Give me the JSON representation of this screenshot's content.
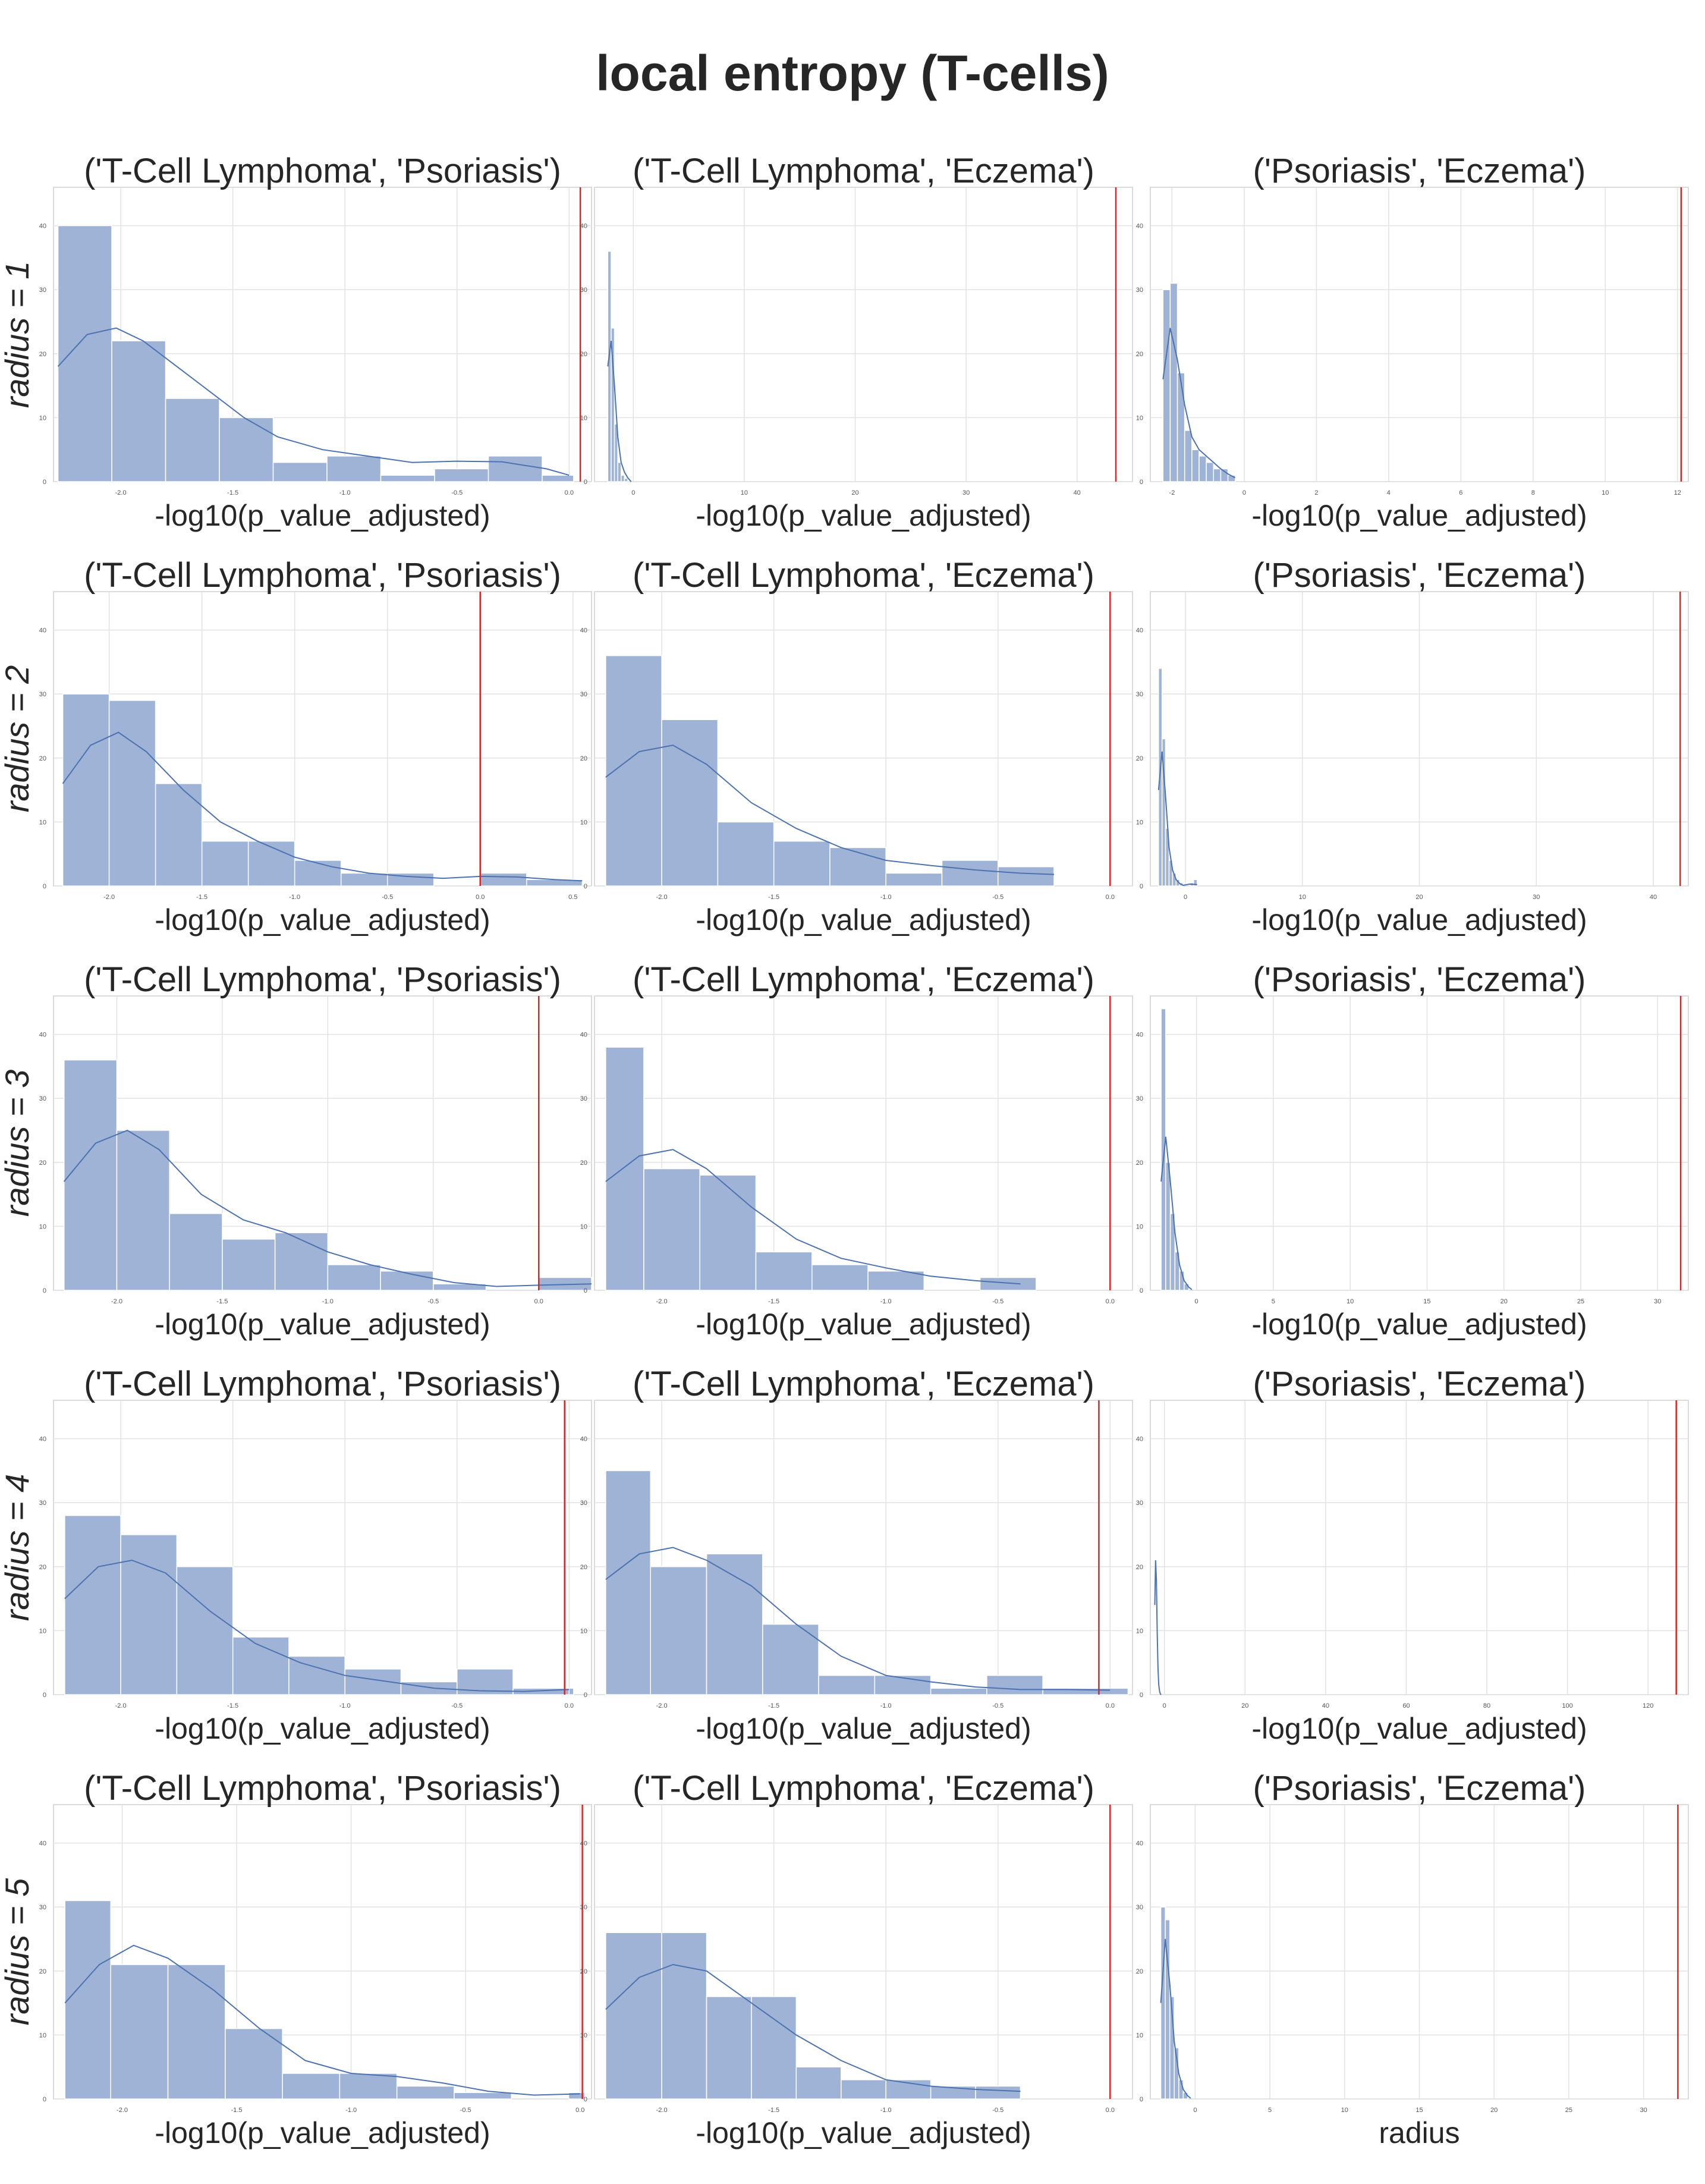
{
  "figure": {
    "title": "local entropy (T-cells)",
    "row_labels": [
      "$radius = 1$",
      "$radius = 2$",
      "$radius = 3$",
      "$radius = 4$",
      "$radius = 5$"
    ],
    "row_label_text": [
      "radius = 1",
      "radius = 2",
      "radius = 3",
      "radius = 4",
      "radius = 5"
    ],
    "bar_color": "#9fb3d6",
    "kde_color": "#4c72b0",
    "ref_line_color": "#d62728",
    "grid": true
  },
  "chart_data": [
    {
      "row": 0,
      "col": 0,
      "type": "bar",
      "title": "('T-Cell Lymphoma', 'Psoriasis')",
      "xlabel": "-log10(p_value_adjusted)",
      "xlim": [
        -2.3,
        0.1
      ],
      "ylim": [
        0,
        46
      ],
      "yticks": [
        0,
        10,
        20,
        30,
        40
      ],
      "xticks": [
        -2.0,
        -1.5,
        -1.0,
        -0.5,
        0.0
      ],
      "xtick_labels": [
        "-2.0",
        "-1.5",
        "-1.0",
        "-0.5",
        "0.0"
      ],
      "bins": [
        -2.28,
        -2.04,
        -1.8,
        -1.56,
        -1.32,
        -1.08,
        -0.84,
        -0.6,
        -0.36,
        -0.12,
        0.02
      ],
      "counts": [
        40,
        22,
        13,
        10,
        3,
        4,
        1,
        2,
        4,
        1
      ],
      "ref_line": 0.05,
      "kde_x": [
        -2.28,
        -2.15,
        -2.02,
        -1.9,
        -1.75,
        -1.6,
        -1.45,
        -1.3,
        -1.1,
        -0.9,
        -0.7,
        -0.5,
        -0.3,
        -0.1,
        0.0
      ],
      "kde_y": [
        18,
        23,
        24,
        22,
        18,
        14,
        10,
        7,
        5,
        4,
        3,
        3.2,
        3.1,
        2,
        1
      ]
    },
    {
      "row": 0,
      "col": 1,
      "type": "bar",
      "title": "('T-Cell Lymphoma', 'Eczema')",
      "xlabel": "-log10(p_value_adjusted)",
      "xlim": [
        -3.5,
        45
      ],
      "ylim": [
        0,
        46
      ],
      "yticks": [
        0,
        10,
        20,
        30,
        40
      ],
      "xticks": [
        0,
        10,
        20,
        30,
        40
      ],
      "xtick_labels": [
        "0",
        "10",
        "20",
        "30",
        "40"
      ],
      "bins": [
        -2.3,
        -2.0,
        -1.7,
        -1.4,
        -1.1,
        -0.8,
        -0.5
      ],
      "counts": [
        36,
        24,
        9,
        3,
        1,
        0.5
      ],
      "ref_line": 43.5,
      "kde_x": [
        -2.3,
        -2.0,
        -1.7,
        -1.4,
        -1.1,
        -0.8,
        -0.5,
        -0.2
      ],
      "kde_y": [
        18,
        22,
        15,
        7,
        3,
        1.5,
        0.6,
        0
      ]
    },
    {
      "row": 0,
      "col": 2,
      "type": "bar",
      "title": "('Psoriasis', 'Eczema')",
      "xlabel": "-log10(p_value_adjusted)",
      "xlim": [
        -2.6,
        12.3
      ],
      "ylim": [
        0,
        46
      ],
      "yticks": [
        0,
        10,
        20,
        30,
        40
      ],
      "xticks": [
        -2,
        0,
        2,
        4,
        6,
        8,
        10,
        12
      ],
      "xtick_labels": [
        "-2",
        "0",
        "2",
        "4",
        "6",
        "8",
        "10",
        "12"
      ],
      "bins": [
        -2.25,
        -2.05,
        -1.85,
        -1.65,
        -1.45,
        -1.25,
        -1.05,
        -0.85,
        -0.65,
        -0.45,
        -0.25
      ],
      "counts": [
        30,
        31,
        17,
        8,
        5,
        4,
        3,
        2,
        2,
        1
      ],
      "ref_line": 12.1,
      "kde_x": [
        -2.25,
        -2.05,
        -1.85,
        -1.65,
        -1.45,
        -1.25,
        -1.05,
        -0.85,
        -0.65,
        -0.45,
        -0.25
      ],
      "kde_y": [
        16,
        24,
        19,
        12,
        7,
        5,
        4,
        3,
        2,
        1.2,
        0.6
      ]
    },
    {
      "row": 1,
      "col": 0,
      "type": "bar",
      "title": "('T-Cell Lymphoma', 'Psoriasis')",
      "xlabel": "-log10(p_value_adjusted)",
      "xlim": [
        -2.3,
        0.6
      ],
      "ylim": [
        0,
        46
      ],
      "yticks": [
        0,
        10,
        20,
        30,
        40
      ],
      "xticks": [
        -2.0,
        -1.5,
        -1.0,
        -0.5,
        0.0,
        0.5
      ],
      "xtick_labels": [
        "-2.0",
        "-1.5",
        "-1.0",
        "-0.5",
        "0.0",
        "0.5"
      ],
      "bins": [
        -2.25,
        -2.0,
        -1.75,
        -1.5,
        -1.25,
        -1.0,
        -0.75,
        -0.5,
        -0.25,
        0.0,
        0.25,
        0.55
      ],
      "counts": [
        30,
        29,
        16,
        7,
        7,
        4,
        2,
        2,
        0,
        2,
        1
      ],
      "ref_line": 0.0,
      "kde_x": [
        -2.25,
        -2.1,
        -1.95,
        -1.8,
        -1.6,
        -1.4,
        -1.2,
        -1.0,
        -0.8,
        -0.6,
        -0.4,
        -0.2,
        0.0,
        0.2,
        0.4,
        0.55
      ],
      "kde_y": [
        16,
        22,
        24,
        21,
        15,
        10,
        7,
        4.5,
        3,
        2,
        1.5,
        1.2,
        1.5,
        1.4,
        1.0,
        0.8
      ]
    },
    {
      "row": 1,
      "col": 1,
      "type": "bar",
      "title": "('T-Cell Lymphoma', 'Eczema')",
      "xlabel": "-log10(p_value_adjusted)",
      "xlim": [
        -2.3,
        0.1
      ],
      "ylim": [
        0,
        46
      ],
      "yticks": [
        0,
        10,
        20,
        30,
        40
      ],
      "xticks": [
        -2.0,
        -1.5,
        -1.0,
        -0.5,
        0.0
      ],
      "xtick_labels": [
        "-2.0",
        "-1.5",
        "-1.0",
        "-0.5",
        "0.0"
      ],
      "bins": [
        -2.25,
        -2.0,
        -1.75,
        -1.5,
        -1.25,
        -1.0,
        -0.75,
        -0.5,
        -0.25
      ],
      "counts": [
        36,
        26,
        10,
        7,
        6,
        2,
        4,
        3,
        2
      ],
      "ref_line": 0.0,
      "kde_x": [
        -2.25,
        -2.1,
        -1.95,
        -1.8,
        -1.6,
        -1.4,
        -1.2,
        -1.0,
        -0.8,
        -0.6,
        -0.4,
        -0.25
      ],
      "kde_y": [
        17,
        21,
        22,
        19,
        13,
        9,
        6,
        4,
        3.2,
        2.5,
        2,
        1.8
      ]
    },
    {
      "row": 1,
      "col": 2,
      "type": "bar",
      "title": "('Psoriasis', 'Eczema')",
      "xlabel": "-log10(p_value_adjusted)",
      "xlim": [
        -3.0,
        43
      ],
      "ylim": [
        0,
        46
      ],
      "yticks": [
        0,
        10,
        20,
        30,
        40
      ],
      "xticks": [
        0,
        10,
        20,
        30,
        40
      ],
      "xtick_labels": [
        "0",
        "10",
        "20",
        "30",
        "40"
      ],
      "bins": [
        -2.3,
        -2.0,
        -1.7,
        -1.4,
        -1.1,
        -0.8,
        -0.5,
        -0.2,
        0.1,
        0.4,
        0.7,
        1.0
      ],
      "counts": [
        34,
        23,
        9,
        4,
        2,
        1,
        0.5,
        0,
        0,
        0.5,
        1
      ],
      "ref_line": 42.3,
      "kde_x": [
        -2.3,
        -2.0,
        -1.7,
        -1.4,
        -1.1,
        -0.8,
        -0.5,
        -0.2,
        0.4,
        1.0
      ],
      "kde_y": [
        15,
        21,
        14,
        6,
        2.5,
        1,
        0.4,
        0.1,
        0.3,
        0.2
      ]
    },
    {
      "row": 2,
      "col": 0,
      "type": "bar",
      "title": "('T-Cell Lymphoma', 'Psoriasis')",
      "xlabel": "-log10(p_value_adjusted)",
      "xlim": [
        -2.3,
        0.25
      ],
      "ylim": [
        0,
        46
      ],
      "yticks": [
        0,
        10,
        20,
        30,
        40
      ],
      "xticks": [
        -2.0,
        -1.5,
        -1.0,
        -0.5,
        0.0
      ],
      "xtick_labels": [
        "-2.0",
        "-1.5",
        "-1.0",
        "-0.5",
        "0.0"
      ],
      "bins": [
        -2.25,
        -2.0,
        -1.75,
        -1.5,
        -1.25,
        -1.0,
        -0.75,
        -0.5,
        -0.25,
        0.0,
        0.25
      ],
      "counts": [
        36,
        25,
        12,
        8,
        9,
        4,
        3,
        1,
        0,
        2
      ],
      "ref_line": 0.0,
      "kde_x": [
        -2.25,
        -2.1,
        -1.95,
        -1.8,
        -1.6,
        -1.4,
        -1.2,
        -1.0,
        -0.8,
        -0.6,
        -0.4,
        -0.2,
        0.0,
        0.25
      ],
      "kde_y": [
        17,
        23,
        25,
        22,
        15,
        11,
        9,
        6,
        4,
        2.5,
        1.2,
        0.6,
        0.8,
        1.0
      ]
    },
    {
      "row": 2,
      "col": 1,
      "type": "bar",
      "title": "('T-Cell Lymphoma', 'Eczema')",
      "xlabel": "-log10(p_value_adjusted)",
      "xlim": [
        -2.3,
        0.1
      ],
      "ylim": [
        0,
        46
      ],
      "yticks": [
        0,
        10,
        20,
        30,
        40
      ],
      "xticks": [
        -2.0,
        -1.5,
        -1.0,
        -0.5,
        0.0
      ],
      "xtick_labels": [
        "-2.0",
        "-1.5",
        "-1.0",
        "-0.5",
        "0.0"
      ],
      "bins": [
        -2.25,
        -2.08,
        -1.83,
        -1.58,
        -1.33,
        -1.08,
        -0.83,
        -0.58,
        -0.33
      ],
      "counts": [
        38,
        19,
        18,
        6,
        4,
        3,
        0,
        2
      ],
      "ref_line": 0.0,
      "kde_x": [
        -2.25,
        -2.1,
        -1.95,
        -1.8,
        -1.6,
        -1.4,
        -1.2,
        -1.0,
        -0.8,
        -0.6,
        -0.4
      ],
      "kde_y": [
        17,
        21,
        22,
        19,
        13,
        8,
        5,
        3.5,
        2.2,
        1.5,
        1.0
      ]
    },
    {
      "row": 2,
      "col": 2,
      "type": "bar",
      "title": "('Psoriasis', 'Eczema')",
      "xlabel": "-log10(p_value_adjusted)",
      "xlim": [
        -3.0,
        32
      ],
      "ylim": [
        0,
        46
      ],
      "yticks": [
        0,
        10,
        20,
        30,
        40
      ],
      "xticks": [
        0,
        5,
        10,
        15,
        20,
        25,
        30
      ],
      "xtick_labels": [
        "0",
        "5",
        "10",
        "15",
        "20",
        "25",
        "30"
      ],
      "bins": [
        -2.3,
        -2.0,
        -1.7,
        -1.4,
        -1.1,
        -0.8,
        -0.5
      ],
      "counts": [
        44,
        20,
        12,
        6,
        3,
        1
      ],
      "ref_line": 31.5,
      "kde_x": [
        -2.3,
        -2.0,
        -1.7,
        -1.4,
        -1.1,
        -0.8,
        -0.5,
        -0.3
      ],
      "kde_y": [
        17,
        24,
        17,
        9,
        4,
        1.5,
        0.5,
        0.1
      ]
    },
    {
      "row": 3,
      "col": 0,
      "type": "bar",
      "title": "('T-Cell Lymphoma', 'Psoriasis')",
      "xlabel": "-log10(p_value_adjusted)",
      "xlim": [
        -2.3,
        0.1
      ],
      "ylim": [
        0,
        46
      ],
      "yticks": [
        0,
        10,
        20,
        30,
        40
      ],
      "xticks": [
        -2.0,
        -1.5,
        -1.0,
        -0.5,
        0.0
      ],
      "xtick_labels": [
        "-2.0",
        "-1.5",
        "-1.0",
        "-0.5",
        "0.0"
      ],
      "bins": [
        -2.25,
        -2.0,
        -1.75,
        -1.5,
        -1.25,
        -1.0,
        -0.75,
        -0.5,
        -0.25,
        0.0,
        0.02
      ],
      "counts": [
        28,
        25,
        20,
        9,
        6,
        4,
        2,
        4,
        1,
        1
      ],
      "ref_line": -0.02,
      "kde_x": [
        -2.25,
        -2.1,
        -1.95,
        -1.8,
        -1.6,
        -1.4,
        -1.2,
        -1.0,
        -0.8,
        -0.6,
        -0.4,
        -0.2,
        0.0
      ],
      "kde_y": [
        15,
        20,
        21,
        19,
        13,
        8,
        5,
        3,
        2,
        1,
        0.6,
        0.5,
        0.8
      ]
    },
    {
      "row": 3,
      "col": 1,
      "type": "bar",
      "title": "('T-Cell Lymphoma', 'Eczema')",
      "xlabel": "-log10(p_value_adjusted)",
      "xlim": [
        -2.3,
        0.1
      ],
      "ylim": [
        0,
        46
      ],
      "yticks": [
        0,
        10,
        20,
        30,
        40
      ],
      "xticks": [
        -2.0,
        -1.5,
        -1.0,
        -0.5,
        0.0
      ],
      "xtick_labels": [
        "-2.0",
        "-1.5",
        "-1.0",
        "-0.5",
        "0.0"
      ],
      "bins": [
        -2.25,
        -2.05,
        -1.8,
        -1.55,
        -1.3,
        -1.05,
        -0.8,
        -0.55,
        -0.3,
        -0.05,
        0.08
      ],
      "counts": [
        35,
        20,
        22,
        11,
        3,
        3,
        1,
        3,
        1,
        1
      ],
      "ref_line": -0.05,
      "kde_x": [
        -2.25,
        -2.1,
        -1.95,
        -1.8,
        -1.6,
        -1.4,
        -1.2,
        -1.0,
        -0.8,
        -0.6,
        -0.4,
        -0.2,
        0.0
      ],
      "kde_y": [
        18,
        22,
        23,
        21,
        17,
        11,
        6,
        3,
        2,
        1.2,
        0.8,
        0.8,
        0.7
      ]
    },
    {
      "row": 3,
      "col": 2,
      "type": "bar",
      "title": "('Psoriasis', 'Eczema')",
      "xlabel": "-log10(p_value_adjusted)",
      "xlim": [
        -3.5,
        130
      ],
      "ylim": [
        0,
        46
      ],
      "yticks": [
        0,
        10,
        20,
        30,
        40
      ],
      "xticks": [
        0,
        20,
        40,
        60,
        80,
        100,
        120
      ],
      "xtick_labels": [
        "0",
        "20",
        "40",
        "60",
        "80",
        "100",
        "120"
      ],
      "bins": [],
      "counts": [],
      "ref_line": 127,
      "kde_x": [
        -2.4,
        -2.2,
        -2.0,
        -1.8,
        -1.6,
        -1.4,
        -1.2,
        -1.0,
        -0.8
      ],
      "kde_y": [
        14,
        21,
        18,
        10,
        4,
        1.5,
        0.5,
        0.1,
        0
      ]
    },
    {
      "row": 4,
      "col": 0,
      "type": "bar",
      "title": "('T-Cell Lymphoma', 'Psoriasis')",
      "xlabel": "-log10(p_value_adjusted)",
      "xlim": [
        -2.3,
        0.05
      ],
      "ylim": [
        0,
        46
      ],
      "yticks": [
        0,
        10,
        20,
        30,
        40
      ],
      "xticks": [
        -2.0,
        -1.5,
        -1.0,
        -0.5,
        0.0
      ],
      "xtick_labels": [
        "-2.0",
        "-1.5",
        "-1.0",
        "-0.5",
        "0.0"
      ],
      "bins": [
        -2.25,
        -2.05,
        -1.8,
        -1.55,
        -1.3,
        -1.05,
        -0.8,
        -0.55,
        -0.3,
        -0.05,
        0.02
      ],
      "counts": [
        31,
        21,
        21,
        11,
        4,
        4,
        2,
        1,
        0,
        1
      ],
      "ref_line": 0.01,
      "kde_x": [
        -2.25,
        -2.1,
        -1.95,
        -1.8,
        -1.6,
        -1.4,
        -1.2,
        -1.0,
        -0.8,
        -0.6,
        -0.4,
        -0.2,
        0.0
      ],
      "kde_y": [
        15,
        21,
        24,
        22,
        17,
        11,
        6,
        4,
        3.5,
        2.5,
        1.2,
        0.6,
        0.8
      ]
    },
    {
      "row": 4,
      "col": 1,
      "type": "bar",
      "title": "('T-Cell Lymphoma', 'Eczema')",
      "xlabel": "-log10(p_value_adjusted)",
      "xlim": [
        -2.3,
        0.1
      ],
      "ylim": [
        0,
        46
      ],
      "yticks": [
        0,
        10,
        20,
        30,
        40
      ],
      "xticks": [
        -2.0,
        -1.5,
        -1.0,
        -0.5,
        0.0
      ],
      "xtick_labels": [
        "-2.0",
        "-1.5",
        "-1.0",
        "-0.5",
        "0.0"
      ],
      "bins": [
        -2.25,
        -2.0,
        -1.8,
        -1.6,
        -1.4,
        -1.2,
        -1.0,
        -0.8,
        -0.6,
        -0.4
      ],
      "counts": [
        26,
        26,
        16,
        16,
        5,
        3,
        3,
        2,
        2,
        3
      ],
      "ref_line": 0.0,
      "kde_x": [
        -2.25,
        -2.1,
        -1.95,
        -1.8,
        -1.6,
        -1.4,
        -1.2,
        -1.0,
        -0.8,
        -0.6,
        -0.4
      ],
      "kde_y": [
        14,
        19,
        21,
        20,
        15,
        10,
        6,
        3,
        2,
        1.5,
        1.2
      ]
    },
    {
      "row": 4,
      "col": 2,
      "type": "bar",
      "title": "('Psoriasis', 'Eczema')",
      "xlabel": "radius",
      "xlim": [
        -3.0,
        33
      ],
      "ylim": [
        0,
        46
      ],
      "yticks": [
        0,
        10,
        20,
        30,
        40
      ],
      "xticks": [
        0,
        5,
        10,
        15,
        20,
        25,
        30
      ],
      "xtick_labels": [
        "0",
        "5",
        "10",
        "15",
        "20",
        "25",
        "30"
      ],
      "bins": [
        -2.3,
        -2.0,
        -1.7,
        -1.4,
        -1.1,
        -0.8,
        -0.5
      ],
      "counts": [
        30,
        28,
        16,
        8,
        3,
        1
      ],
      "ref_line": 32.3,
      "kde_x": [
        -2.3,
        -2.0,
        -1.7,
        -1.4,
        -1.1,
        -0.8,
        -0.5,
        -0.3
      ],
      "kde_y": [
        15,
        25,
        18,
        9,
        4,
        1.5,
        0.5,
        0.1
      ]
    }
  ]
}
